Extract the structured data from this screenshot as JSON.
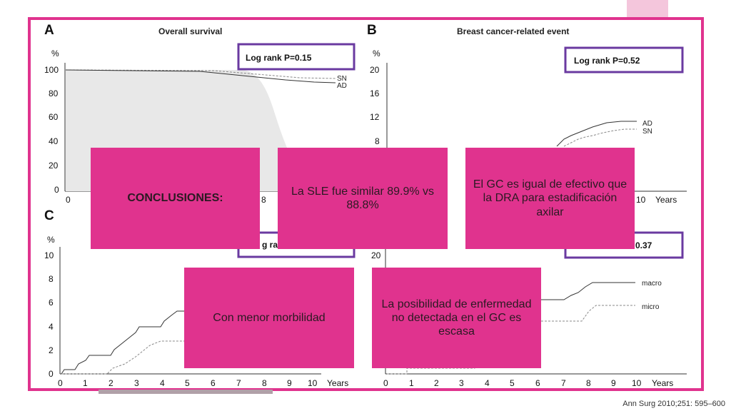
{
  "panels": {
    "a": {
      "letter": "A",
      "title": "Overall survival",
      "y_unit": "%",
      "y_ticks": [
        "100",
        "80",
        "60",
        "40",
        "20",
        "0"
      ],
      "x_ticks": [
        "0",
        "8"
      ],
      "logrank": "Log rank P=0.15",
      "legend": [
        "SN",
        "AD"
      ]
    },
    "b": {
      "letter": "B",
      "title": "Breast cancer-related event",
      "y_unit": "%",
      "y_ticks": [
        "20",
        "16",
        "12",
        "8"
      ],
      "x_ticks": [
        "10",
        "Years"
      ],
      "logrank": "Log rank  P=0.52",
      "legend": [
        "AD",
        "SN"
      ]
    },
    "c": {
      "letter": "C",
      "y_unit": "%",
      "y_ticks": [
        "10",
        "8",
        "6",
        "4",
        "2",
        "0"
      ],
      "x_ticks": [
        "0",
        "1",
        "2",
        "3",
        "4",
        "5",
        "6",
        "7",
        "8",
        "9",
        "10",
        "Years"
      ],
      "logrank_partial": "g ra"
    },
    "d": {
      "y_ticks": [
        "20"
      ],
      "x_ticks": [
        "0",
        "1",
        "2",
        "3",
        "4",
        "5",
        "6",
        "7",
        "8",
        "9",
        "10",
        "Years"
      ],
      "logrank_partial": "0.37",
      "legend": [
        "macro",
        "micro"
      ]
    }
  },
  "boxes": {
    "conclusiones": "CONCLUSIONES:",
    "sle": "La SLE fue similar 89.9% vs 88.8%",
    "gc_efectivo": "El GC es igual de efectivo que la DRA para estadificación axilar",
    "morbilidad": "Con menor morbilidad",
    "enfermedad": "La posibilidad de enfermedad no detectada en el GC es escasa"
  },
  "citation": "Ann Surg 2010;251: 595–600",
  "colors": {
    "accent": "#e0338e",
    "frame": "#e0338e",
    "logrank_border": "#6a3aa0"
  }
}
